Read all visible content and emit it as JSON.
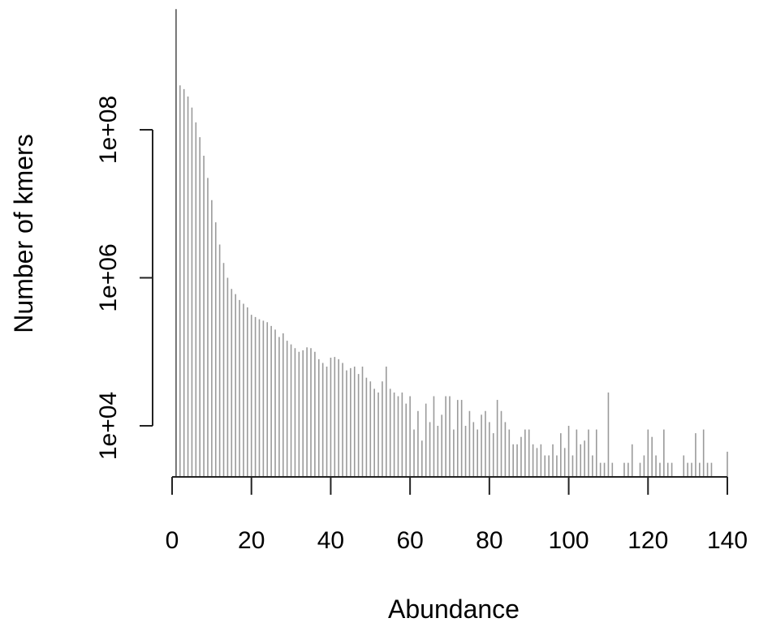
{
  "chart_data": {
    "type": "bar",
    "title": "",
    "xlabel": "Abundance",
    "ylabel": "Number of kmers",
    "x_scale": "linear",
    "y_scale": "log",
    "xlim": [
      0,
      140
    ],
    "ylim_log10": [
      3.3,
      9.65
    ],
    "x_ticks": [
      0,
      20,
      40,
      60,
      80,
      100,
      120,
      140
    ],
    "x_tick_labels": [
      "0",
      "20",
      "40",
      "60",
      "80",
      "100",
      "120",
      "140"
    ],
    "y_ticks_log10": [
      4,
      6,
      8
    ],
    "y_tick_labels": [
      "1e+04",
      "1e+06",
      "1e+08"
    ],
    "bar_color": "#9a9a9a",
    "axis_color": "#222222",
    "abundance": [
      1,
      2,
      3,
      4,
      5,
      6,
      7,
      8,
      9,
      10,
      11,
      12,
      13,
      14,
      15,
      16,
      17,
      18,
      19,
      20,
      21,
      22,
      23,
      24,
      25,
      26,
      27,
      28,
      29,
      30,
      31,
      32,
      33,
      34,
      35,
      36,
      37,
      38,
      39,
      40,
      41,
      42,
      43,
      44,
      45,
      46,
      47,
      48,
      49,
      50,
      51,
      52,
      53,
      54,
      55,
      56,
      57,
      58,
      59,
      60,
      61,
      62,
      63,
      64,
      65,
      66,
      67,
      68,
      69,
      70,
      71,
      72,
      73,
      74,
      75,
      76,
      77,
      78,
      79,
      80,
      81,
      82,
      83,
      84,
      85,
      86,
      87,
      88,
      89,
      90,
      91,
      92,
      93,
      94,
      95,
      96,
      97,
      98,
      99,
      100,
      101,
      102,
      103,
      104,
      105,
      106,
      107,
      108,
      109,
      110,
      111,
      112,
      113,
      114,
      115,
      116,
      117,
      118,
      119,
      120,
      121,
      122,
      123,
      124,
      125,
      126,
      127,
      128,
      129,
      130,
      131,
      132,
      133,
      134,
      135,
      136,
      137,
      138,
      139,
      140
    ],
    "log10_count": [
      9.63,
      8.6,
      8.55,
      8.45,
      8.3,
      8.1,
      7.9,
      7.65,
      7.35,
      7.05,
      6.75,
      6.45,
      6.2,
      6.0,
      5.85,
      5.78,
      5.7,
      5.65,
      5.6,
      5.5,
      5.47,
      5.44,
      5.42,
      5.4,
      5.35,
      5.3,
      5.2,
      5.25,
      5.15,
      5.1,
      5.05,
      5.0,
      5.02,
      5.06,
      5.05,
      5.0,
      4.9,
      4.85,
      4.8,
      4.92,
      4.93,
      4.9,
      4.85,
      4.75,
      4.78,
      4.8,
      4.7,
      4.8,
      4.65,
      4.6,
      4.5,
      4.45,
      4.6,
      4.8,
      4.5,
      4.45,
      4.4,
      4.45,
      4.3,
      4.4,
      3.95,
      4.2,
      3.8,
      4.3,
      4.05,
      4.4,
      4.0,
      4.15,
      4.4,
      4.4,
      3.95,
      4.35,
      4.35,
      4.0,
      4.2,
      4.05,
      3.95,
      4.15,
      4.2,
      4.05,
      3.9,
      4.35,
      4.2,
      4.05,
      3.95,
      3.75,
      3.75,
      3.85,
      3.95,
      3.95,
      3.75,
      3.7,
      3.75,
      3.6,
      3.6,
      3.75,
      3.6,
      3.9,
      3.7,
      4.0,
      3.6,
      3.95,
      3.75,
      3.8,
      3.95,
      3.6,
      3.95,
      3.5,
      3.5,
      4.45,
      3.5,
      3.3,
      3.3,
      3.5,
      3.5,
      3.75,
      3.3,
      3.5,
      3.6,
      3.95,
      3.85,
      3.6,
      3.5,
      3.95,
      3.5,
      3.5,
      3.3,
      3.3,
      3.6,
      3.5,
      3.5,
      3.9,
      3.5,
      3.95,
      3.5,
      3.5,
      3.3,
      3.3,
      3.3,
      3.65
    ]
  }
}
